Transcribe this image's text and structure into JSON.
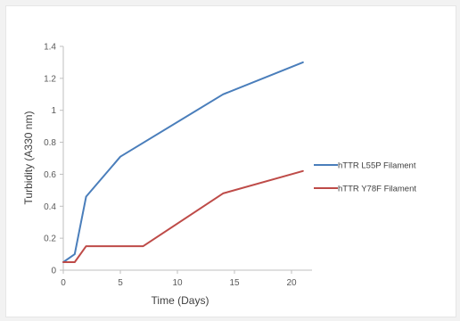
{
  "chart_data": {
    "type": "line",
    "title": "",
    "xlabel": "Time (Days)",
    "ylabel": "Turbidity (A330 nm)",
    "xlim": [
      0,
      22
    ],
    "ylim": [
      0,
      1.4
    ],
    "x_ticks": [
      0,
      5,
      10,
      15,
      20
    ],
    "x_tick_labels": [
      "0",
      "5",
      "10",
      "15",
      "20"
    ],
    "y_ticks": [
      0,
      0.2,
      0.4,
      0.6,
      0.8,
      1.0,
      1.2,
      1.4
    ],
    "y_tick_labels": [
      "0",
      "0.2",
      "0.4",
      "0.6",
      "0.8",
      "1",
      "1.2",
      "1.4"
    ],
    "grid": false,
    "legend_position": "right",
    "series": [
      {
        "name": "hTTR L55P Filament",
        "color": "#4a7ebb",
        "x": [
          0,
          1,
          2,
          5,
          14,
          21
        ],
        "y": [
          0.05,
          0.1,
          0.46,
          0.71,
          1.1,
          1.3
        ]
      },
      {
        "name": "hTTR Y78F Filament",
        "color": "#be4b48",
        "x": [
          0,
          1,
          2,
          7,
          14,
          21
        ],
        "y": [
          0.05,
          0.05,
          0.15,
          0.15,
          0.48,
          0.62
        ]
      }
    ]
  }
}
